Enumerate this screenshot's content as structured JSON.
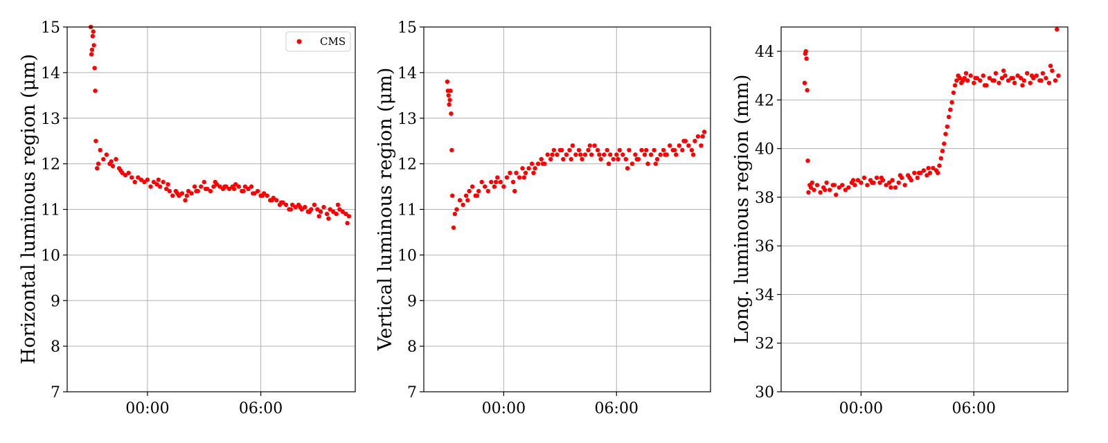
{
  "marker_color": "#ff0000",
  "legend": {
    "label": "CMS"
  },
  "chart_data": [
    {
      "type": "scatter",
      "ylabel": "Horizontal luminous region (μm)",
      "ylim": [
        7,
        15
      ],
      "yticks": [
        7,
        8,
        9,
        10,
        11,
        12,
        13,
        14,
        15
      ],
      "xticks": [
        "00:00",
        "06:00"
      ],
      "xlim": [
        "-04:15",
        "11:00"
      ],
      "grid": true,
      "legend_position": "top-right",
      "series": [
        {
          "name": "CMS",
          "x": [
            "-3:00",
            "-2:58",
            "-2:56",
            "-2:54",
            "-2:52",
            "-2:50",
            "-2:48",
            "-2:46",
            "-2:44",
            "-2:40",
            "-2:36",
            "-2:30",
            "-2:20",
            "-2:10",
            "-2:00",
            "-1:50",
            "-1:40",
            "-1:30",
            "-1:20",
            "-1:10",
            "-1:00",
            "-0:50",
            "-0:40",
            "-0:30",
            "-0:20",
            "-0:10",
            "0:00",
            "0:10",
            "0:20",
            "0:30",
            "0:40",
            "0:50",
            "1:00",
            "1:10",
            "1:20",
            "1:30",
            "1:40",
            "1:50",
            "2:00",
            "2:10",
            "2:20",
            "2:30",
            "2:40",
            "2:50",
            "3:00",
            "3:10",
            "3:20",
            "3:30",
            "3:40",
            "3:50",
            "4:00",
            "4:10",
            "4:20",
            "4:30",
            "4:40",
            "4:50",
            "5:00",
            "5:10",
            "5:20",
            "5:30",
            "5:40",
            "5:50",
            "6:00",
            "6:10",
            "6:20",
            "6:30",
            "6:40",
            "6:50",
            "7:00",
            "7:10",
            "7:20",
            "7:30",
            "7:40",
            "7:50",
            "8:00",
            "8:10",
            "8:20",
            "8:30",
            "8:40",
            "8:50",
            "9:00",
            "9:10",
            "9:20",
            "9:30",
            "9:40",
            "9:50",
            "10:00",
            "10:10",
            "10:20",
            "10:30",
            "10:40",
            "-1:55",
            "-1:25",
            "0:35",
            "1:05",
            "1:35",
            "2:05",
            "2:35",
            "3:05",
            "3:35",
            "4:05",
            "4:35",
            "5:05",
            "5:35",
            "6:05",
            "6:35",
            "7:05",
            "7:35",
            "8:05",
            "8:35",
            "9:05",
            "9:35",
            "10:05",
            "10:35"
          ],
          "y": [
            15.0,
            14.4,
            14.5,
            14.8,
            14.9,
            14.6,
            14.1,
            13.6,
            12.5,
            11.9,
            12.0,
            12.3,
            12.1,
            12.2,
            12.0,
            11.95,
            12.1,
            11.9,
            11.8,
            11.75,
            11.8,
            11.7,
            11.6,
            11.7,
            11.65,
            11.6,
            11.65,
            11.5,
            11.6,
            11.55,
            11.5,
            11.6,
            11.45,
            11.4,
            11.3,
            11.4,
            11.3,
            11.35,
            11.2,
            11.4,
            11.35,
            11.5,
            11.4,
            11.5,
            11.6,
            11.45,
            11.4,
            11.5,
            11.55,
            11.5,
            11.45,
            11.5,
            11.45,
            11.5,
            11.55,
            11.5,
            11.4,
            11.5,
            11.45,
            11.5,
            11.35,
            11.4,
            11.3,
            11.35,
            11.3,
            11.2,
            11.25,
            11.2,
            11.1,
            11.15,
            11.1,
            11.0,
            11.1,
            11.05,
            11.1,
            11.0,
            11.05,
            10.95,
            11.0,
            11.1,
            11.0,
            10.95,
            11.05,
            10.9,
            11.0,
            10.95,
            10.9,
            11.0,
            10.95,
            10.9,
            10.85,
            12.05,
            11.85,
            11.65,
            11.55,
            11.35,
            11.3,
            11.4,
            11.45,
            11.6,
            11.5,
            11.45,
            11.4,
            11.35,
            11.3,
            11.2,
            11.15,
            11.0,
            11.05,
            10.95,
            10.85,
            10.8,
            11.1,
            10.7
          ]
        }
      ]
    },
    {
      "type": "scatter",
      "ylabel": "Vertical luminous region (μm)",
      "ylim": [
        7,
        15
      ],
      "yticks": [
        7,
        8,
        9,
        10,
        11,
        12,
        13,
        14,
        15
      ],
      "xticks": [
        "00:00",
        "06:00"
      ],
      "xlim": [
        "-04:15",
        "11:00"
      ],
      "grid": true,
      "series": [
        {
          "name": "CMS",
          "x": [
            "-3:00",
            "-2:58",
            "-2:56",
            "-2:54",
            "-2:52",
            "-2:50",
            "-2:48",
            "-2:46",
            "-2:44",
            "-2:40",
            "-2:36",
            "-2:30",
            "-2:20",
            "-2:10",
            "-2:00",
            "-1:50",
            "-1:40",
            "-1:30",
            "-1:20",
            "-1:10",
            "-1:00",
            "-0:50",
            "-0:40",
            "-0:30",
            "-0:20",
            "-0:10",
            "0:00",
            "0:10",
            "0:20",
            "0:30",
            "0:40",
            "0:50",
            "1:00",
            "1:10",
            "1:20",
            "1:30",
            "1:40",
            "1:50",
            "2:00",
            "2:10",
            "2:20",
            "2:30",
            "2:40",
            "2:50",
            "3:00",
            "3:10",
            "3:20",
            "3:30",
            "3:40",
            "3:50",
            "4:00",
            "4:10",
            "4:20",
            "4:30",
            "4:40",
            "4:50",
            "5:00",
            "5:10",
            "5:20",
            "5:30",
            "5:40",
            "5:50",
            "6:00",
            "6:10",
            "6:20",
            "6:30",
            "6:40",
            "6:50",
            "7:00",
            "7:10",
            "7:20",
            "7:30",
            "7:40",
            "7:50",
            "8:00",
            "8:10",
            "8:20",
            "8:30",
            "8:40",
            "8:50",
            "9:00",
            "9:10",
            "9:20",
            "9:30",
            "9:40",
            "9:50",
            "10:00",
            "10:10",
            "10:20",
            "10:30",
            "10:40",
            "-1:55",
            "-1:25",
            "-0:25",
            "0:35",
            "1:05",
            "1:35",
            "2:05",
            "2:35",
            "3:05",
            "3:35",
            "4:05",
            "4:35",
            "5:05",
            "5:35",
            "6:05",
            "6:35",
            "7:05",
            "7:35",
            "8:05",
            "8:35",
            "9:05",
            "9:35",
            "10:05",
            "10:35"
          ],
          "y": [
            13.8,
            13.6,
            13.5,
            13.3,
            13.4,
            13.6,
            13.1,
            12.3,
            11.3,
            10.6,
            10.9,
            11.0,
            11.2,
            11.1,
            11.3,
            11.4,
            11.5,
            11.3,
            11.4,
            11.6,
            11.5,
            11.4,
            11.6,
            11.5,
            11.7,
            11.6,
            11.5,
            11.7,
            11.8,
            11.6,
            11.8,
            11.7,
            11.9,
            11.8,
            11.9,
            12.0,
            11.9,
            12.0,
            12.1,
            12.0,
            12.2,
            12.1,
            12.3,
            12.2,
            12.3,
            12.1,
            12.2,
            12.3,
            12.4,
            12.2,
            12.3,
            12.1,
            12.2,
            12.3,
            12.2,
            12.4,
            12.3,
            12.1,
            12.2,
            12.3,
            12.2,
            12.1,
            12.2,
            12.3,
            12.2,
            12.1,
            12.3,
            12.0,
            12.2,
            12.1,
            12.3,
            12.2,
            12.0,
            12.2,
            12.3,
            12.1,
            12.2,
            12.3,
            12.2,
            12.4,
            12.3,
            12.2,
            12.4,
            12.3,
            12.5,
            12.4,
            12.3,
            12.5,
            12.6,
            12.4,
            12.7,
            11.2,
            11.3,
            11.6,
            11.4,
            11.7,
            11.8,
            12.0,
            12.2,
            12.3,
            12.1,
            12.2,
            12.4,
            12.2,
            12.0,
            12.1,
            11.9,
            12.1,
            12.3,
            12.0,
            12.2,
            12.3,
            12.5,
            12.2,
            12.6
          ]
        }
      ]
    },
    {
      "type": "scatter",
      "ylabel": "Long. luminous region (mm)",
      "ylim": [
        30,
        45
      ],
      "yticks": [
        30,
        32,
        34,
        36,
        38,
        40,
        42,
        44
      ],
      "xticks": [
        "00:00",
        "06:00"
      ],
      "xlim": [
        "-04:15",
        "11:00"
      ],
      "grid": true,
      "series": [
        {
          "name": "CMS",
          "x": [
            "-3:00",
            "-2:58",
            "-2:56",
            "-2:54",
            "-2:52",
            "-2:50",
            "-2:48",
            "-2:44",
            "-2:40",
            "-2:36",
            "-2:30",
            "-2:20",
            "-2:10",
            "-2:00",
            "-1:50",
            "-1:40",
            "-1:30",
            "-1:20",
            "-1:10",
            "-1:00",
            "-0:50",
            "-0:40",
            "-0:30",
            "-0:20",
            "-0:10",
            "0:00",
            "0:10",
            "0:20",
            "0:30",
            "0:40",
            "0:50",
            "1:00",
            "1:10",
            "1:20",
            "1:30",
            "1:40",
            "1:50",
            "2:00",
            "2:10",
            "2:20",
            "2:30",
            "2:40",
            "2:50",
            "3:00",
            "3:10",
            "3:20",
            "3:30",
            "3:40",
            "3:50",
            "4:00",
            "4:05",
            "4:10",
            "4:15",
            "4:20",
            "4:25",
            "4:30",
            "4:35",
            "4:40",
            "4:45",
            "4:50",
            "4:55",
            "5:00",
            "5:05",
            "5:10",
            "5:15",
            "5:20",
            "5:30",
            "5:40",
            "5:50",
            "6:00",
            "6:10",
            "6:20",
            "6:30",
            "6:40",
            "6:50",
            "7:00",
            "7:10",
            "7:20",
            "7:30",
            "7:40",
            "7:50",
            "8:00",
            "8:10",
            "8:20",
            "8:30",
            "8:40",
            "8:50",
            "9:00",
            "9:10",
            "9:20",
            "9:30",
            "9:40",
            "9:50",
            "10:00",
            "10:10",
            "10:20",
            "10:30",
            "-1:55",
            "-1:25",
            "-0:25",
            "0:35",
            "1:05",
            "1:35",
            "2:05",
            "2:35",
            "3:05",
            "3:35",
            "5:25",
            "5:35",
            "6:05",
            "6:35",
            "7:05",
            "7:35",
            "8:05",
            "8:35",
            "9:05",
            "9:35",
            "10:05",
            "10:25"
          ],
          "y": [
            42.7,
            43.9,
            44.0,
            43.7,
            42.4,
            39.5,
            38.2,
            38.5,
            38.4,
            38.6,
            38.3,
            38.5,
            38.2,
            38.4,
            38.6,
            38.3,
            38.5,
            38.1,
            38.4,
            38.5,
            38.3,
            38.4,
            38.6,
            38.5,
            38.7,
            38.6,
            38.8,
            38.5,
            38.7,
            38.6,
            38.8,
            38.6,
            38.7,
            38.5,
            38.6,
            38.7,
            38.4,
            38.6,
            38.8,
            38.5,
            38.9,
            38.7,
            39.0,
            38.8,
            39.0,
            39.1,
            38.9,
            39.0,
            39.2,
            39.1,
            39.0,
            39.3,
            39.6,
            39.9,
            40.2,
            40.6,
            40.9,
            41.3,
            41.6,
            41.9,
            42.3,
            42.6,
            42.8,
            43.0,
            42.9,
            42.7,
            42.9,
            42.8,
            43.0,
            42.7,
            42.9,
            42.8,
            43.0,
            42.6,
            42.9,
            42.8,
            43.1,
            42.7,
            42.9,
            43.0,
            42.8,
            42.9,
            42.7,
            43.0,
            42.9,
            42.8,
            43.1,
            42.7,
            42.9,
            43.0,
            42.8,
            43.1,
            42.9,
            42.7,
            43.2,
            42.8,
            43.0,
            38.3,
            38.5,
            38.7,
            38.6,
            38.8,
            38.4,
            38.9,
            38.8,
            39.0,
            39.2,
            42.8,
            43.1,
            42.9,
            42.6,
            42.8,
            43.2,
            42.9,
            42.6,
            43.0,
            42.8,
            43.4,
            44.9
          ]
        }
      ]
    }
  ]
}
